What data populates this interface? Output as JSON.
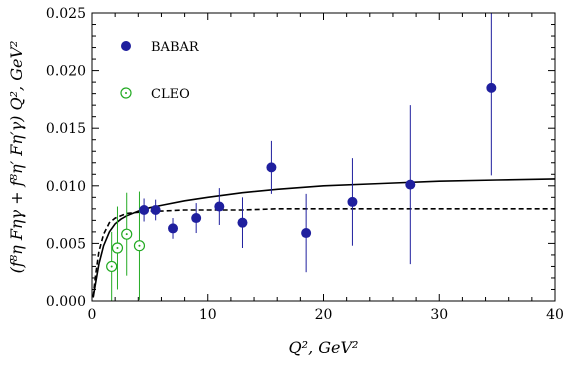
{
  "chart_data": {
    "type": "scatter",
    "xlabel": "Q², GeV²",
    "ylabel": "(f⁸η Fηγ + f⁸η′ Fη′γ) Q², GeV²",
    "xlim": [
      0,
      40
    ],
    "ylim": [
      0,
      0.025
    ],
    "x_ticks": [
      0,
      10,
      20,
      30,
      40
    ],
    "x_tick_labels": [
      "0",
      "10",
      "20",
      "30",
      "40"
    ],
    "y_ticks": [
      0,
      0.005,
      0.01,
      0.015,
      0.02,
      0.025
    ],
    "y_tick_labels": [
      "0.000",
      "0.005",
      "0.010",
      "0.015",
      "0.020",
      "0.025"
    ],
    "grid": false,
    "legend_position": "top-left",
    "series": [
      {
        "name": "BABAR",
        "kind": "points",
        "marker": "filled-circle",
        "color": "#1f1f9e",
        "points": [
          {
            "x": 4.5,
            "y": 0.0079,
            "err": 0.001
          },
          {
            "x": 5.5,
            "y": 0.0079,
            "err": 0.0009
          },
          {
            "x": 7.0,
            "y": 0.0063,
            "err": 0.0009
          },
          {
            "x": 9.0,
            "y": 0.0072,
            "err": 0.0013
          },
          {
            "x": 11.0,
            "y": 0.0082,
            "err": 0.0016
          },
          {
            "x": 13.0,
            "y": 0.0068,
            "err": 0.0022
          },
          {
            "x": 15.5,
            "y": 0.0116,
            "err": 0.0023
          },
          {
            "x": 18.5,
            "y": 0.0059,
            "err": 0.0034
          },
          {
            "x": 22.5,
            "y": 0.0086,
            "err": 0.0038
          },
          {
            "x": 27.5,
            "y": 0.0101,
            "err": 0.0069
          },
          {
            "x": 34.5,
            "y": 0.0185,
            "err": 0.0076
          }
        ]
      },
      {
        "name": "CLEO",
        "kind": "points",
        "marker": "open-circle-dot",
        "color": "#22aa22",
        "points": [
          {
            "x": 1.7,
            "y": 0.003,
            "err": 0.003
          },
          {
            "x": 2.2,
            "y": 0.0046,
            "err": 0.0036
          },
          {
            "x": 3.0,
            "y": 0.0058,
            "err": 0.0036
          },
          {
            "x": 4.1,
            "y": 0.0048,
            "err": 0.0047
          }
        ]
      },
      {
        "kind": "line",
        "style": "solid",
        "color": "#000000",
        "x": [
          0.1,
          0.3,
          0.6,
          1.0,
          1.5,
          2.0,
          2.5,
          3.0,
          4.0,
          5.0,
          6.0,
          8.0,
          10.0,
          13.0,
          16.0,
          20.0,
          25.0,
          30.0,
          35.0,
          40.0
        ],
        "y": [
          0.0003,
          0.0015,
          0.0032,
          0.0048,
          0.006,
          0.0067,
          0.0071,
          0.0074,
          0.0078,
          0.0081,
          0.0083,
          0.0087,
          0.009,
          0.0094,
          0.0097,
          0.01,
          0.0102,
          0.0104,
          0.0105,
          0.0106
        ]
      },
      {
        "kind": "line",
        "style": "dashed",
        "color": "#000000",
        "x": [
          0.1,
          0.3,
          0.6,
          1.0,
          1.5,
          2.0,
          2.5,
          3.0,
          4.0,
          5.0,
          6.0,
          8.0,
          10.0,
          13.0,
          16.0,
          20.0,
          25.0,
          30.0,
          35.0,
          40.0
        ],
        "y": [
          0.0004,
          0.0022,
          0.0043,
          0.0058,
          0.0068,
          0.0072,
          0.0074,
          0.0076,
          0.0077,
          0.0078,
          0.0078,
          0.0079,
          0.0079,
          0.0079,
          0.008,
          0.008,
          0.008,
          0.008,
          0.008,
          0.008
        ]
      }
    ]
  }
}
